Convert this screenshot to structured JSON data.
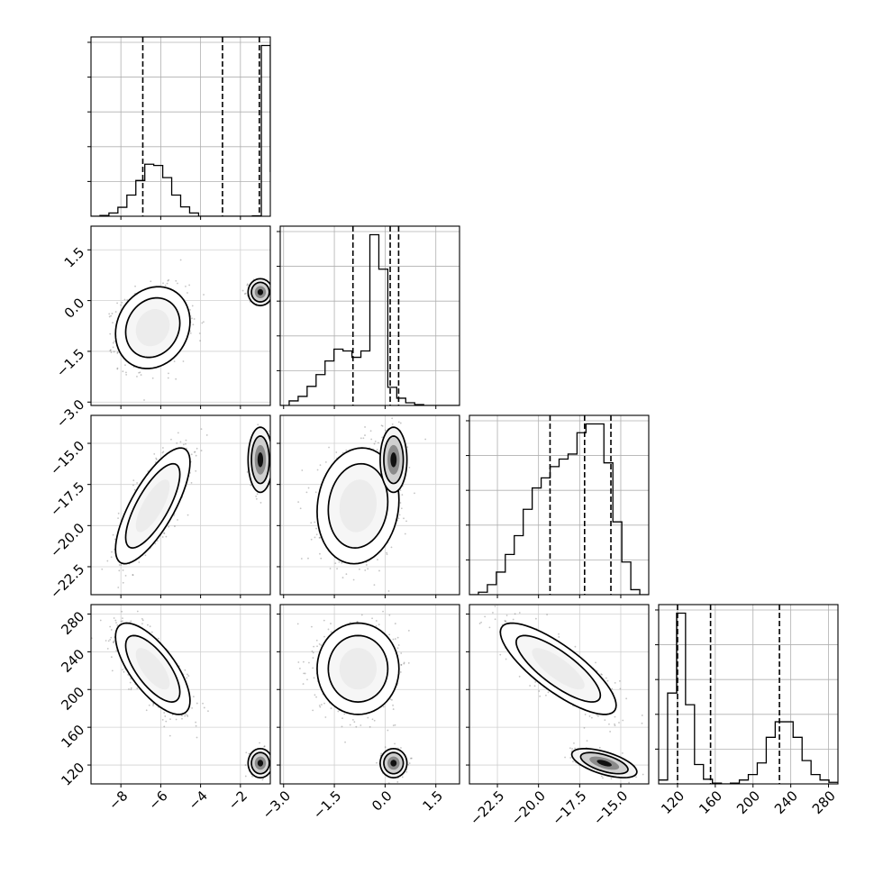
{
  "chart_data": {
    "type": "corner",
    "grid": true,
    "parameters": [
      {
        "ticks": [
          -8,
          -6,
          -4,
          -2
        ],
        "tick_labels": [
          "−8",
          "−6",
          "−4",
          "−2"
        ],
        "range": [
          -9.5,
          -0.5
        ]
      },
      {
        "ticks": [
          -3.0,
          -1.5,
          0.0,
          1.5
        ],
        "tick_labels": [
          "−3.0",
          "−1.5",
          "0.0",
          "1.5"
        ],
        "range": [
          -3.1,
          2.2
        ]
      },
      {
        "ticks": [
          -22.5,
          -20.0,
          -17.5,
          -15.0
        ],
        "tick_labels": [
          "−22.5",
          "−20.0",
          "−17.5",
          "−15.0"
        ],
        "range": [
          -24.2,
          -13.3
        ]
      },
      {
        "ticks": [
          120,
          160,
          200,
          240,
          280
        ],
        "tick_labels": [
          "120",
          "160",
          "200",
          "240",
          "280"
        ],
        "range": [
          100,
          290
        ]
      }
    ],
    "quantiles": [
      [
        -6.9,
        -2.9,
        -1.05
      ],
      [
        -0.95,
        0.15,
        0.4
      ],
      [
        -19.3,
        -17.2,
        -15.6
      ],
      [
        120,
        155,
        228
      ]
    ],
    "histograms": [
      {
        "edges_start": -9.5,
        "bin_width": 0.45,
        "counts": [
          0,
          0.2,
          0.8,
          2.2,
          5.2,
          8.8,
          12.8,
          12.5,
          9.5,
          5.2,
          2.3,
          0.8,
          0,
          0,
          0,
          0,
          0,
          0,
          0.1,
          42,
          11
        ]
      },
      {
        "edges_start": -3.1,
        "bin_width": 0.265,
        "counts": [
          0,
          0.5,
          1,
          2.1,
          3.4,
          4.9,
          6.2,
          6,
          5.3,
          6,
          18.8,
          15,
          2,
          0.8,
          0.3,
          0.1,
          0,
          0,
          0,
          0
        ]
      },
      {
        "edges_start": -24.2,
        "bin_width": 0.545,
        "counts": [
          0,
          0.2,
          0.8,
          1.8,
          3.2,
          4.7,
          6.8,
          8.5,
          9.3,
          10.2,
          10.8,
          11.2,
          12.9,
          13.6,
          13.6,
          10.5,
          5.8,
          2.6,
          0.4,
          0
        ]
      },
      {
        "edges_start": 100,
        "bin_width": 9.5,
        "counts": [
          0.5,
          11.7,
          22,
          10.2,
          2.5,
          0.6,
          0.1,
          0,
          0.1,
          0.5,
          1.2,
          2.7,
          6,
          8,
          8,
          6,
          3,
          1.2,
          0.5,
          0.2
        ]
      }
    ],
    "clusters_2d": [
      {
        "x": 0,
        "y": 1,
        "modes": [
          {
            "mean": [
              -6.4,
              -0.8
            ],
            "std": [
              0.85,
              0.55
            ],
            "rho": 0.15,
            "weight": 0.7,
            "points": 900
          },
          {
            "mean": [
              -1.0,
              0.25
            ],
            "std": [
              0.28,
              0.18
            ],
            "rho": 0.0,
            "weight": 0.3,
            "points": 160
          }
        ]
      },
      {
        "x": 0,
        "y": 2,
        "modes": [
          {
            "mean": [
              -6.4,
              -18.8
            ],
            "std": [
              0.85,
              1.6
            ],
            "rho": 0.75,
            "weight": 0.7,
            "points": 900
          },
          {
            "mean": [
              -1.0,
              -16.0
            ],
            "std": [
              0.28,
              0.9
            ],
            "rho": 0.0,
            "weight": 0.3,
            "points": 160
          }
        ]
      },
      {
        "x": 0,
        "y": 3,
        "modes": [
          {
            "mean": [
              -6.4,
              222
            ],
            "std": [
              0.85,
              22
            ],
            "rho": -0.7,
            "weight": 0.7,
            "points": 900
          },
          {
            "mean": [
              -1.0,
              122
            ],
            "std": [
              0.28,
              7
            ],
            "rho": 0.0,
            "weight": 0.3,
            "points": 160
          }
        ]
      },
      {
        "x": 1,
        "y": 2,
        "modes": [
          {
            "mean": [
              -0.8,
              -18.8
            ],
            "std": [
              0.55,
              1.6
            ],
            "rho": 0.1,
            "weight": 0.7,
            "points": 900
          },
          {
            "mean": [
              0.25,
              -16.0
            ],
            "std": [
              0.18,
              0.9
            ],
            "rho": 0.0,
            "weight": 0.3,
            "points": 220
          }
        ]
      },
      {
        "x": 1,
        "y": 3,
        "modes": [
          {
            "mean": [
              -0.8,
              222
            ],
            "std": [
              0.55,
              22
            ],
            "rho": 0.0,
            "weight": 0.7,
            "points": 900
          },
          {
            "mean": [
              0.25,
              122
            ],
            "std": [
              0.18,
              7
            ],
            "rho": 0.0,
            "weight": 0.3,
            "points": 200
          }
        ]
      },
      {
        "x": 2,
        "y": 3,
        "modes": [
          {
            "mean": [
              -18.8,
              222
            ],
            "std": [
              1.6,
              22
            ],
            "rho": -0.8,
            "weight": 0.7,
            "points": 900
          },
          {
            "mean": [
              -16.0,
              122
            ],
            "std": [
              0.9,
              7
            ],
            "rho": -0.6,
            "weight": 0.3,
            "points": 250
          }
        ]
      }
    ]
  }
}
